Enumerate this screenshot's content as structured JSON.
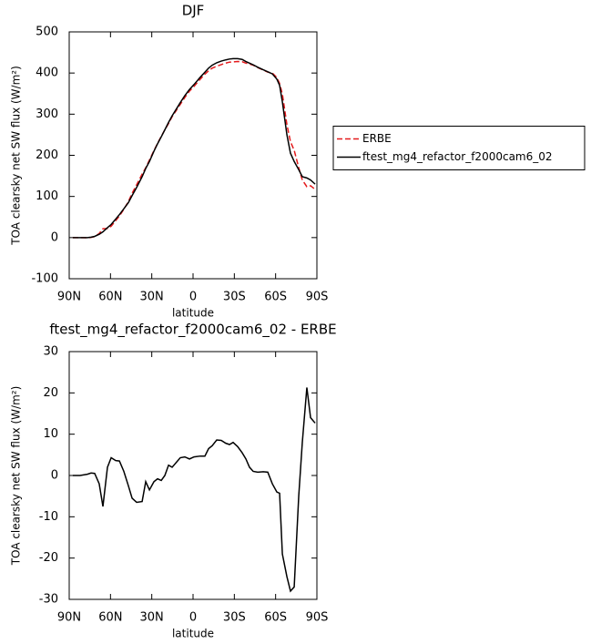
{
  "chart_data": [
    {
      "type": "line",
      "title": "DJF",
      "xlabel": "latitude",
      "ylabel": "TOA clearsky net SW flux (W/m²)",
      "x": [
        87.4,
        82.1,
        76.8,
        74.1,
        71.5,
        68.2,
        65.5,
        62.2,
        59.5,
        56.2,
        53.5,
        50.3,
        47,
        44.3,
        41,
        37,
        34.4,
        31.7,
        28.4,
        25.8,
        23.1,
        20.5,
        17.8,
        15.2,
        12.6,
        9.3,
        6,
        2.6,
        -0.7,
        -5.3,
        -8.6,
        -11.3,
        -13.9,
        -17.2,
        -20.5,
        -23.8,
        -26.5,
        -29.1,
        -32.4,
        -35.7,
        -38.4,
        -41,
        -43.7,
        -47,
        -51,
        -54.3,
        -57.6,
        -60.9,
        -62.9,
        -64.9,
        -68.2,
        -70.8,
        -73.5,
        -76.8,
        -79.4,
        -82.7,
        -85.4,
        -88.7
      ],
      "series": [
        {
          "name": "ERBE",
          "color": "#e41a1c",
          "style": "dashed",
          "values": [
            0,
            0,
            -0.3,
            0.4,
            2.5,
            10,
            21.5,
            22,
            27.7,
            41.4,
            52.5,
            69,
            87.5,
            107.5,
            128.5,
            154.3,
            169.5,
            188.5,
            211.5,
            228.8,
            246.2,
            262,
            277.5,
            294,
            307,
            323.7,
            340.5,
            356,
            367.5,
            385.3,
            397.3,
            405.5,
            411.8,
            416.4,
            420.5,
            424.2,
            426.5,
            427,
            428,
            427.5,
            424,
            422,
            419,
            413.2,
            407.1,
            402.2,
            400,
            389,
            374.3,
            349,
            274.5,
            233,
            212,
            170,
            140,
            123.7,
            126,
            117.3
          ]
        },
        {
          "name": "ftest_mg4_refactor_f2000cam6_02",
          "color": "#000000",
          "style": "solid",
          "values": [
            0,
            0,
            0,
            1,
            3,
            8,
            14,
            24,
            32,
            45,
            56,
            70,
            85,
            102,
            122,
            148,
            168,
            185,
            210,
            228,
            245,
            262,
            280,
            296,
            310,
            328,
            345,
            360,
            372,
            390,
            402,
            412,
            419,
            425,
            429,
            432,
            434,
            435,
            435,
            433,
            428,
            424,
            420,
            414,
            408,
            403,
            398,
            385,
            370,
            330,
            250,
            205,
            185,
            165,
            148,
            145,
            140,
            130
          ]
        }
      ],
      "xlim": [
        90,
        -90
      ],
      "ylim": [
        -100,
        500
      ],
      "xticks": [
        {
          "value": 90,
          "label": "90N"
        },
        {
          "value": 60,
          "label": "60N"
        },
        {
          "value": 30,
          "label": "30N"
        },
        0,
        {
          "value": -30,
          "label": "30S"
        },
        {
          "value": -60,
          "label": "60S"
        },
        {
          "value": -90,
          "label": "90S"
        }
      ],
      "yticks": [
        -100,
        0,
        100,
        200,
        300,
        400,
        500
      ],
      "legend": "right"
    },
    {
      "type": "line",
      "title": "ftest_mg4_refactor_f2000cam6_02 - ERBE",
      "xlabel": "latitude",
      "ylabel": "TOA clearsky net SW flux (W/m²)",
      "x": [
        87.4,
        82.1,
        76.8,
        74.1,
        71.5,
        68.2,
        65.5,
        62.2,
        59.5,
        56.2,
        53.5,
        50.3,
        47,
        44.3,
        41,
        37,
        34.4,
        31.7,
        28.4,
        25.8,
        23.1,
        20.5,
        17.8,
        15.2,
        12.6,
        9.3,
        6,
        2.6,
        -0.7,
        -5.3,
        -8.6,
        -11.3,
        -13.9,
        -17.2,
        -20.5,
        -23.8,
        -26.5,
        -29.1,
        -32.4,
        -35.7,
        -38.4,
        -41,
        -43.7,
        -47,
        -51,
        -54.3,
        -57.6,
        -60.9,
        -62.9,
        -64.9,
        -68.2,
        -70.8,
        -73.5,
        -76.8,
        -79.4,
        -82.7,
        -85.4,
        -88.7
      ],
      "series": [
        {
          "color": "#000000",
          "style": "solid",
          "values": [
            0,
            0,
            0.3,
            0.6,
            0.5,
            -2,
            -7.5,
            2,
            4.3,
            3.6,
            3.5,
            1,
            -2.5,
            -5.5,
            -6.5,
            -6.3,
            -1.5,
            -3.5,
            -1.5,
            -0.8,
            -1.2,
            0,
            2.5,
            2,
            3,
            4.3,
            4.5,
            4,
            4.5,
            4.7,
            4.7,
            6.5,
            7.2,
            8.6,
            8.5,
            7.8,
            7.5,
            8,
            7,
            5.5,
            4,
            2,
            1,
            0.8,
            0.9,
            0.8,
            -2,
            -4,
            -4.3,
            -19,
            -24.5,
            -28,
            -27,
            -5,
            8,
            21.3,
            14,
            12.7
          ]
        }
      ],
      "xlim": [
        90,
        -90
      ],
      "ylim": [
        -30,
        30
      ],
      "xticks": [
        {
          "value": 90,
          "label": "90N"
        },
        {
          "value": 60,
          "label": "60N"
        },
        {
          "value": 30,
          "label": "30N"
        },
        0,
        {
          "value": -30,
          "label": "30S"
        },
        {
          "value": -60,
          "label": "60S"
        },
        {
          "value": -90,
          "label": "90S"
        }
      ],
      "yticks": [
        -30,
        -20,
        -10,
        0,
        10,
        20,
        30
      ]
    }
  ]
}
